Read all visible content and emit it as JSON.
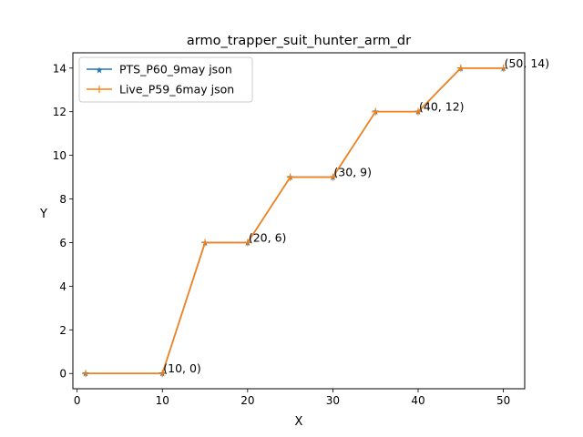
{
  "chart_data": {
    "type": "line",
    "title": "armo_trapper_suit_hunter_arm_dr",
    "xlabel": "X",
    "ylabel": "Y",
    "xlim": [
      -0.5,
      52.5
    ],
    "ylim": [
      -0.7,
      14.7
    ],
    "xticks": [
      0,
      10,
      20,
      30,
      40,
      50
    ],
    "yticks": [
      0,
      2,
      4,
      6,
      8,
      10,
      12,
      14
    ],
    "grid": false,
    "legend_position": "top-left",
    "x": [
      1,
      10,
      15,
      20,
      25,
      30,
      35,
      40,
      45,
      50
    ],
    "series": [
      {
        "name": "PTS_P60_9may json",
        "values": [
          0,
          0,
          6,
          6,
          9,
          9,
          12,
          12,
          14,
          14
        ],
        "color": "#1f77b4",
        "marker": "star"
      },
      {
        "name": "Live_P59_6may json",
        "values": [
          0,
          0,
          6,
          6,
          9,
          9,
          12,
          12,
          14,
          14
        ],
        "color": "#ff7f0e",
        "marker": "plus"
      }
    ],
    "annotations": [
      {
        "x": 10,
        "y": 0,
        "text": "(10, 0)"
      },
      {
        "x": 20,
        "y": 6,
        "text": "(20, 6)"
      },
      {
        "x": 30,
        "y": 9,
        "text": "(30, 9)"
      },
      {
        "x": 40,
        "y": 12,
        "text": "(40, 12)"
      },
      {
        "x": 50,
        "y": 14,
        "text": "(50, 14)"
      }
    ]
  }
}
